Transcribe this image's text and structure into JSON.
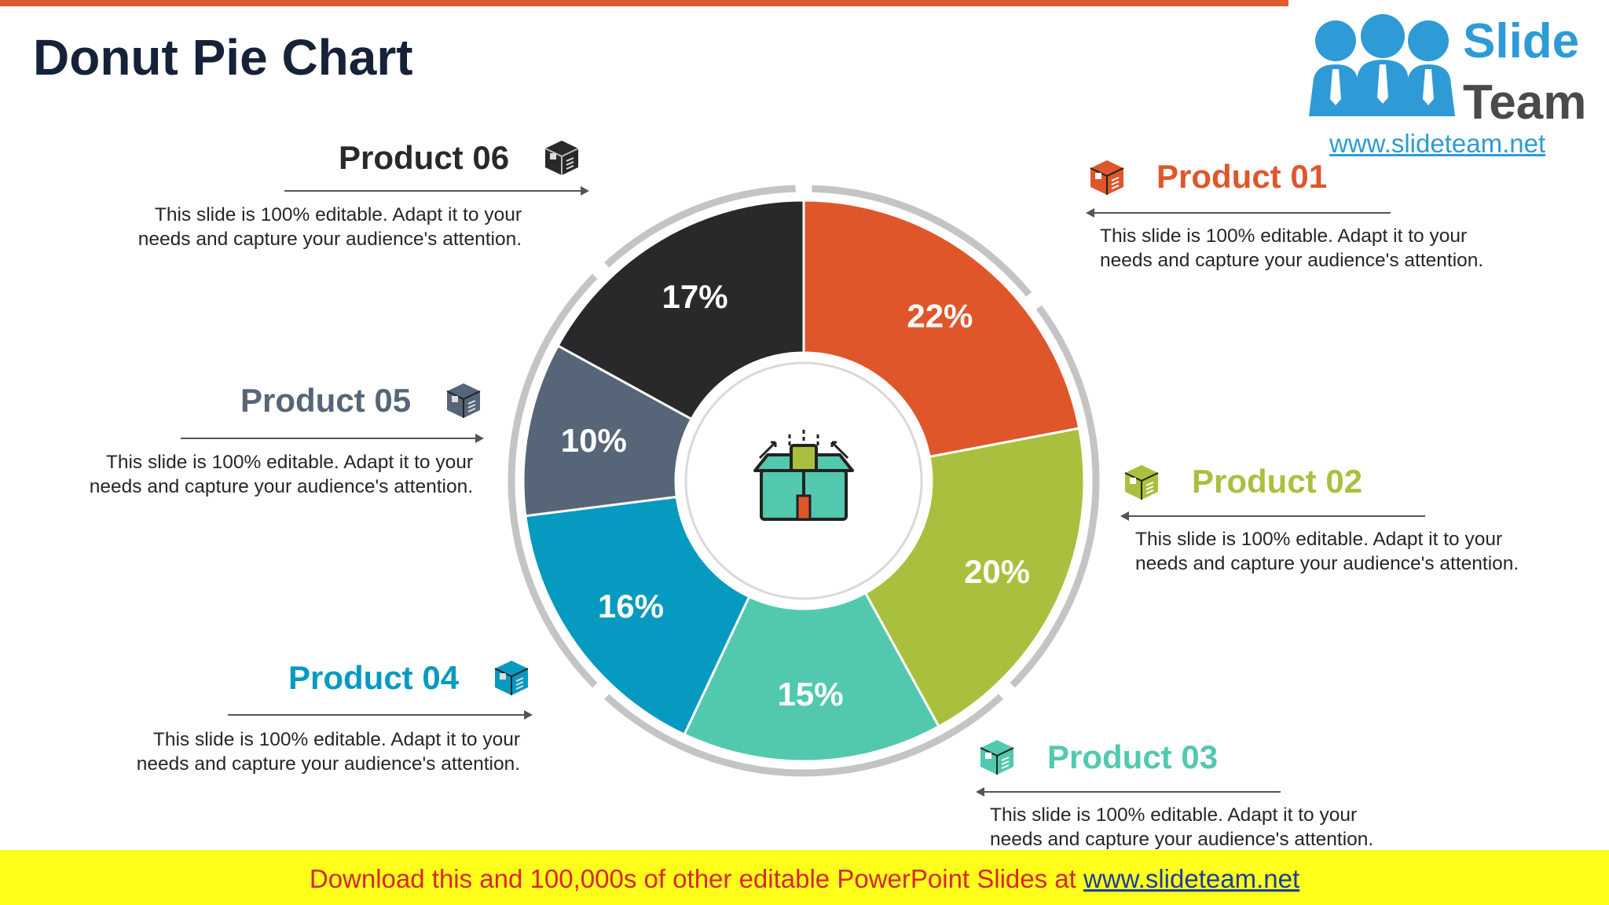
{
  "title": "Donut Pie Chart",
  "logo": {
    "word1": "Slide",
    "word2": "Team",
    "url": "www.slideteam.net"
  },
  "chart_data": {
    "type": "pie",
    "variant": "donut",
    "categories": [
      "Product 01",
      "Product 02",
      "Product 03",
      "Product 04",
      "Product 05",
      "Product 06"
    ],
    "values": [
      22,
      20,
      15,
      16,
      10,
      17
    ],
    "labels": [
      "22%",
      "20%",
      "15%",
      "16%",
      "10%",
      "17%"
    ],
    "colors": [
      "#e0562b",
      "#a8c03e",
      "#52c9ae",
      "#069ac0",
      "#566577",
      "#29292c"
    ]
  },
  "products": [
    {
      "name": "Product 01",
      "color": "#e0562b",
      "desc": "This slide is 100% editable. Adapt it to your needs and capture your audience's attention."
    },
    {
      "name": "Product 02",
      "color": "#a8c03e",
      "desc": "This slide is 100% editable. Adapt it to your needs and capture your audience's attention."
    },
    {
      "name": "Product 03",
      "color": "#52c9ae",
      "desc": "This slide is 100% editable. Adapt it to your needs and capture your audience's attention."
    },
    {
      "name": "Product 04",
      "color": "#069ac0",
      "desc": "This slide is 100% editable. Adapt it to your needs and capture your audience's attention."
    },
    {
      "name": "Product 05",
      "color": "#566577",
      "desc": "This slide is 100% editable. Adapt it to your needs and capture your audience's attention."
    },
    {
      "name": "Product 06",
      "color": "#29292c",
      "desc": "This slide is 100% editable. Adapt it to your needs and capture your audience's attention."
    }
  ],
  "center_icon": "gift-box-icon",
  "banner": {
    "text": "Download this and 100,000s of other editable PowerPoint Slides at ",
    "link": "www.slideteam.net"
  }
}
